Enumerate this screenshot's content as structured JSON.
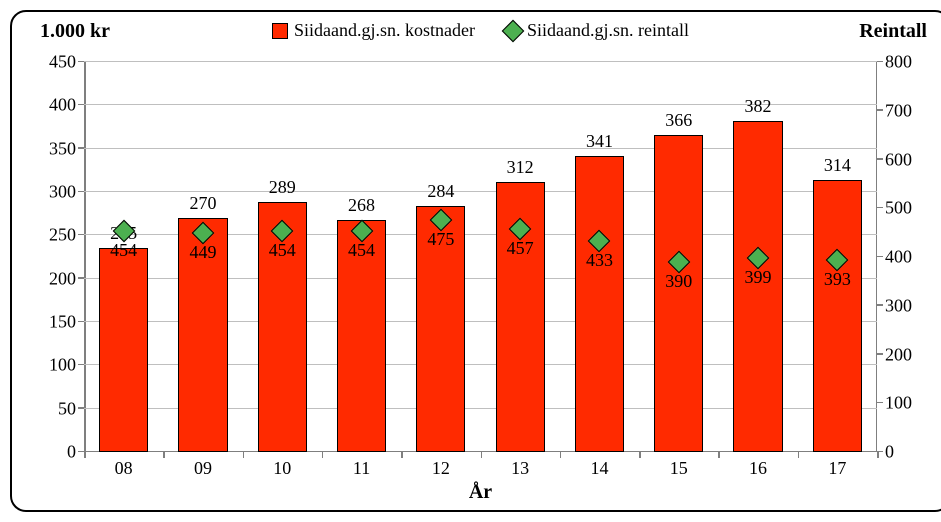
{
  "chart": {
    "type": "bar+scatter",
    "left_axis_title": "1.000 kr",
    "right_axis_title": "Reintall",
    "x_axis_title": "År",
    "title_fontsize": 20,
    "tick_fontsize": 18,
    "label_fontsize": 18,
    "background_color": "#ffffff",
    "border_color": "#000000",
    "border_radius": 16,
    "grid_color": "#bfbfbf",
    "axis_line_color": "#7f7f7f",
    "bar_color": "#ff2a00",
    "bar_border_color": "#000000",
    "diamond_color": "#4cb050",
    "diamond_border_color": "#000000",
    "bar_width_ratio": 0.62,
    "categories": [
      "08",
      "09",
      "10",
      "11",
      "12",
      "13",
      "14",
      "15",
      "16",
      "17"
    ],
    "bar_values": [
      235,
      270,
      289,
      268,
      284,
      312,
      341,
      366,
      382,
      314
    ],
    "bar_value_labels": [
      "235",
      "270",
      "289",
      "268",
      "284",
      "312",
      "341",
      "366",
      "382",
      "314"
    ],
    "reintall_values": [
      454,
      449,
      454,
      454,
      475,
      457,
      433,
      390,
      399,
      393
    ],
    "reintall_value_labels": [
      "454",
      "449",
      "454",
      "454",
      "475",
      "457",
      "433",
      "390",
      "399",
      "393"
    ],
    "left_axis": {
      "min": 0,
      "max": 450,
      "step": 50
    },
    "right_axis": {
      "min": 0,
      "max": 800,
      "step": 100
    },
    "legend": {
      "series1": {
        "label": "Siidaand.gj.sn. kostnader",
        "type": "bar",
        "color": "#ff2a00"
      },
      "series2": {
        "label": "Siidaand.gj.sn. reintall",
        "type": "diamond",
        "color": "#4cb050"
      }
    }
  }
}
